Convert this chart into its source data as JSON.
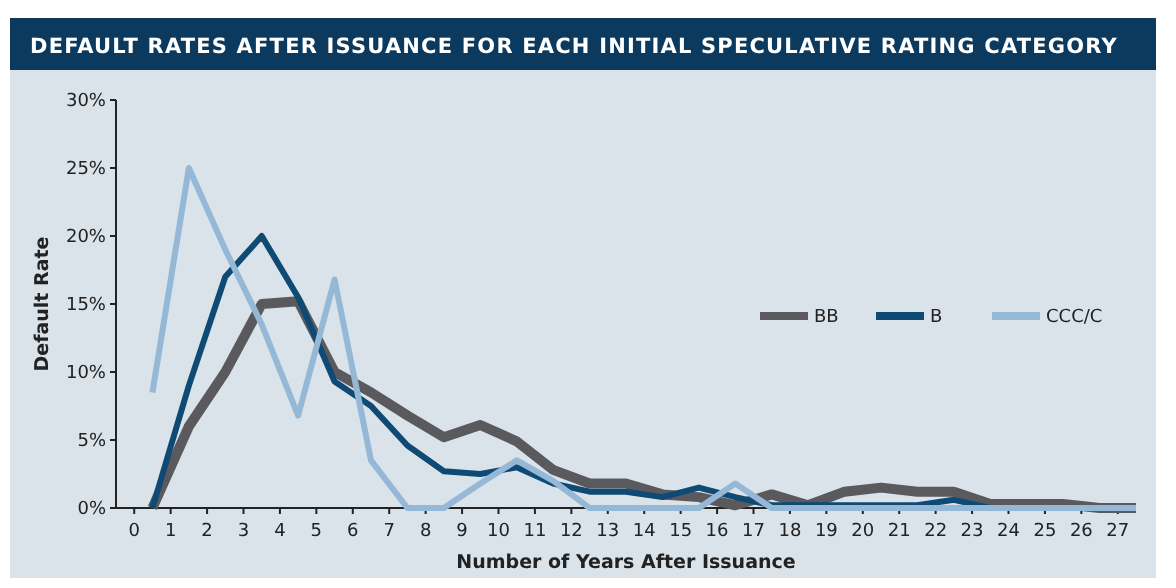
{
  "chart_data": {
    "type": "line",
    "title": "DEFAULT RATES AFTER ISSUANCE FOR EACH INITIAL SPECULATIVE RATING CATEGORY",
    "xlabel": "Number of Years After Issuance",
    "ylabel": "Default Rate",
    "x": [
      0.5,
      1.5,
      2.5,
      3.5,
      4.5,
      5.5,
      6.5,
      7.5,
      8.5,
      9.5,
      10.5,
      11.5,
      12.5,
      13.5,
      14.5,
      15.5,
      16.5,
      17.5,
      18.5,
      19.5,
      20.5,
      21.5,
      22.5,
      23.5,
      24.5,
      25.5,
      26.5,
      27.5
    ],
    "series": [
      {
        "name": "BB",
        "color": "#5a5a5e",
        "values": [
          0,
          6,
          10,
          15,
          15.2,
          10,
          8.5,
          6.8,
          5.2,
          6.1,
          4.9,
          2.8,
          1.8,
          1.8,
          1.0,
          0.8,
          0.2,
          1.0,
          0.2,
          1.2,
          1.5,
          1.2,
          1.2,
          0.3,
          0.3,
          0.3,
          0,
          0
        ]
      },
      {
        "name": "B",
        "color": "#0e4a73",
        "values": [
          0,
          9,
          17,
          20,
          15.5,
          9.3,
          7.5,
          4.6,
          2.7,
          2.5,
          3.0,
          1.8,
          1.2,
          1.2,
          0.8,
          1.5,
          0.8,
          0.2,
          0.2,
          0.2,
          0.2,
          0.2,
          0.6,
          0,
          0,
          0,
          0,
          0
        ]
      },
      {
        "name": "CCC/C",
        "color": "#94b8d6",
        "values": [
          8.5,
          25,
          19,
          13.5,
          6.8,
          16.8,
          3.5,
          0,
          0,
          1.8,
          3.5,
          2.0,
          0,
          0,
          0,
          0,
          1.8,
          0,
          0,
          0,
          0,
          0,
          0,
          0,
          0,
          0,
          0,
          0
        ]
      }
    ],
    "xlim": [
      -0.5,
      27.5
    ],
    "xticks": [
      0,
      1,
      2,
      3,
      4,
      5,
      6,
      7,
      8,
      9,
      10,
      11,
      12,
      13,
      14,
      15,
      16,
      17,
      18,
      19,
      20,
      21,
      22,
      23,
      24,
      25,
      26,
      27
    ],
    "ylim": [
      0,
      30
    ],
    "yticks": [
      {
        "value": 0,
        "label": "0%"
      },
      {
        "value": 5,
        "label": "5%"
      },
      {
        "value": 10,
        "label": "10%"
      },
      {
        "value": 15,
        "label": "15%"
      },
      {
        "value": 20,
        "label": "20%"
      },
      {
        "value": 25,
        "label": "25%"
      },
      {
        "value": 30,
        "label": "30%"
      }
    ],
    "grid": false,
    "legend": "right",
    "marker": "none",
    "line_style": "solid"
  }
}
